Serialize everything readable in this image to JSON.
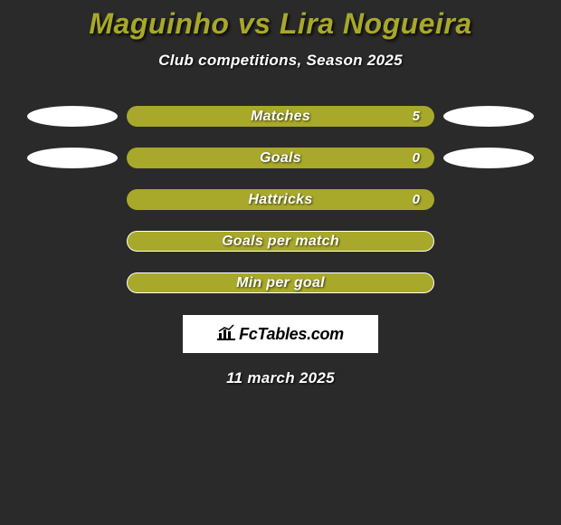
{
  "title": "Maguinho vs Lira Nogueira",
  "subtitle": "Club competitions, Season 2025",
  "colors": {
    "background": "#2a2a2a",
    "accent": "#a8a82a",
    "bubble": "#ffffff",
    "text": "#ffffff"
  },
  "rows": [
    {
      "label": "Matches",
      "value": "5",
      "left_bubble": true,
      "right_bubble": true,
      "bordered": false
    },
    {
      "label": "Goals",
      "value": "0",
      "left_bubble": true,
      "right_bubble": true,
      "bordered": false
    },
    {
      "label": "Hattricks",
      "value": "0",
      "left_bubble": false,
      "right_bubble": false,
      "bordered": false
    },
    {
      "label": "Goals per match",
      "value": "",
      "left_bubble": false,
      "right_bubble": false,
      "bordered": true
    },
    {
      "label": "Min per goal",
      "value": "",
      "left_bubble": false,
      "right_bubble": false,
      "bordered": true
    }
  ],
  "logo_text": "FcTables.com",
  "date": "11 march 2025"
}
